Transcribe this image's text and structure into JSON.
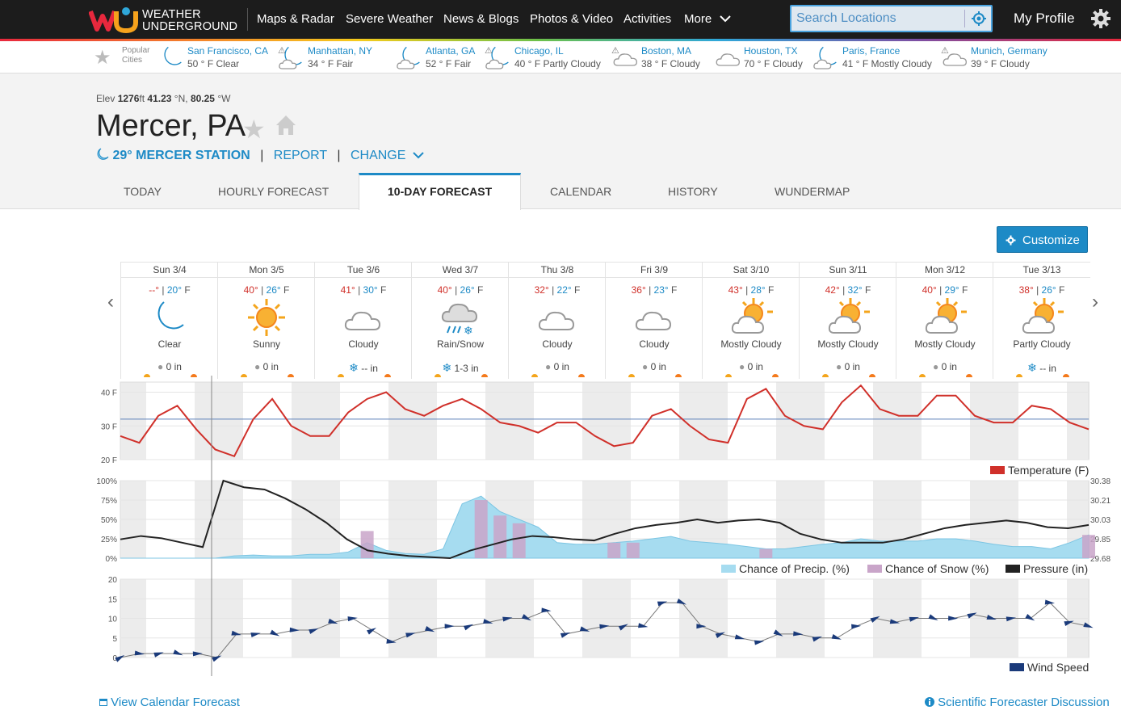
{
  "brand": {
    "line1": "WEATHER",
    "line2": "UNDERGROUND"
  },
  "nav": [
    "Maps & Radar",
    "Severe Weather",
    "News & Blogs",
    "Photos & Video",
    "Activities",
    "More"
  ],
  "search": {
    "placeholder": "Search Locations"
  },
  "profile": "My Profile",
  "popular": {
    "label_line1": "Popular",
    "label_line2": "Cities",
    "cities": [
      {
        "name": "San Francisco, CA",
        "cond": "50 ° F Clear",
        "icon": "moon-icon",
        "warn": false
      },
      {
        "name": "Manhattan, NY",
        "cond": "34 ° F Fair",
        "icon": "moon-cloud-icon",
        "warn": true
      },
      {
        "name": "Atlanta, GA",
        "cond": "52 ° F Fair",
        "icon": "moon-cloud-icon",
        "warn": false
      },
      {
        "name": "Chicago, IL",
        "cond": "40 ° F Partly Cloudy",
        "icon": "moon-cloud-icon",
        "warn": true
      },
      {
        "name": "Boston, MA",
        "cond": "38 ° F Cloudy",
        "icon": "cloud-icon",
        "warn": true
      },
      {
        "name": "Houston, TX",
        "cond": "70 ° F Cloudy",
        "icon": "cloud-icon",
        "warn": false
      },
      {
        "name": "Paris, France",
        "cond": "41 ° F Mostly Cloudy",
        "icon": "moon-cloud-icon",
        "warn": false
      },
      {
        "name": "Munich, Germany",
        "cond": "39 ° F Cloudy",
        "icon": "cloud-icon",
        "warn": true
      }
    ]
  },
  "location": {
    "elev_label": "Elev",
    "elev_value": "1276",
    "elev_unit": "ft",
    "lat": "41.23",
    "lat_unit": "°N,",
    "lon": "80.25",
    "lon_unit": "°W",
    "title": "Mercer, PA",
    "station_temp": "29°",
    "station_name": "MERCER STATION",
    "report": "REPORT",
    "change": "CHANGE"
  },
  "tabs": [
    "TODAY",
    "HOURLY FORECAST",
    "10-DAY FORECAST",
    "CALENDAR",
    "HISTORY",
    "WUNDERMAP"
  ],
  "active_tab": "10-DAY FORECAST",
  "customize": "Customize",
  "days": [
    {
      "label": "Sun 3/4",
      "hi": "--°",
      "lo": "20°",
      "unit": "F",
      "cond": "Clear",
      "icon": "moon-icon",
      "precip": "0 in",
      "precip_icon": "drop-icon"
    },
    {
      "label": "Mon 3/5",
      "hi": "40°",
      "lo": "26°",
      "unit": "F",
      "cond": "Sunny",
      "icon": "sun-icon",
      "precip": "0 in",
      "precip_icon": "drop-icon"
    },
    {
      "label": "Tue 3/6",
      "hi": "41°",
      "lo": "30°",
      "unit": "F",
      "cond": "Cloudy",
      "icon": "cloud-icon",
      "precip": "-- in",
      "precip_icon": "snowflake-icon"
    },
    {
      "label": "Wed 3/7",
      "hi": "40°",
      "lo": "26°",
      "unit": "F",
      "cond": "Rain/Snow",
      "icon": "rain-snow-icon",
      "precip": "1-3 in",
      "precip_icon": "snowflake-icon"
    },
    {
      "label": "Thu 3/8",
      "hi": "32°",
      "lo": "22°",
      "unit": "F",
      "cond": "Cloudy",
      "icon": "cloud-icon",
      "precip": "0 in",
      "precip_icon": "drop-icon"
    },
    {
      "label": "Fri 3/9",
      "hi": "36°",
      "lo": "23°",
      "unit": "F",
      "cond": "Cloudy",
      "icon": "cloud-icon",
      "precip": "0 in",
      "precip_icon": "drop-icon"
    },
    {
      "label": "Sat 3/10",
      "hi": "43°",
      "lo": "28°",
      "unit": "F",
      "cond": "Mostly Cloudy",
      "icon": "sun-cloud-icon",
      "precip": "0 in",
      "precip_icon": "drop-icon"
    },
    {
      "label": "Sun 3/11",
      "hi": "42°",
      "lo": "32°",
      "unit": "F",
      "cond": "Mostly Cloudy",
      "icon": "sun-cloud-icon",
      "precip": "0 in",
      "precip_icon": "drop-icon"
    },
    {
      "label": "Mon 3/12",
      "hi": "40°",
      "lo": "29°",
      "unit": "F",
      "cond": "Mostly Cloudy",
      "icon": "sun-cloud-icon",
      "precip": "0 in",
      "precip_icon": "drop-icon"
    },
    {
      "label": "Tue 3/13",
      "hi": "38°",
      "lo": "26°",
      "unit": "F",
      "cond": "Partly Cloudy",
      "icon": "sun-cloud-icon",
      "precip": "-- in",
      "precip_icon": "snowflake-icon"
    }
  ],
  "colors": {
    "temperature": "#d0302a",
    "precip": "#a6dcf0",
    "snow": "#c9a5c9",
    "pressure": "#222222",
    "wind": "#1a3a7a",
    "accent": "#1d8ac6"
  },
  "chart_data": [
    {
      "type": "line",
      "x_axis": "hours from Sun 3/4, 6-hour steps over 10 days",
      "ylim": [
        20,
        43
      ],
      "yticks": [
        "40 F",
        "30 F",
        "20 F"
      ],
      "series": [
        {
          "name": "Temperature (F)",
          "values": [
            27,
            25,
            33,
            36,
            29,
            23,
            21,
            32,
            38,
            30,
            27,
            27,
            34,
            38,
            40,
            35,
            33,
            36,
            38,
            35,
            31,
            30,
            28,
            31,
            31,
            27,
            24,
            25,
            33,
            35,
            30,
            26,
            25,
            38,
            41,
            33,
            30,
            29,
            37,
            42,
            35,
            33,
            33,
            39,
            39,
            33,
            31,
            31,
            36,
            35,
            31,
            29
          ]
        }
      ]
    },
    {
      "type": "area",
      "ylim": [
        0,
        100
      ],
      "yticks": [
        "100%",
        "75%",
        "50%",
        "25%",
        "0%"
      ],
      "y2ticks": [
        "30.38",
        "30.21",
        "30.03",
        "29.85",
        "29.68"
      ],
      "series": [
        {
          "name": "Chance of Precip. (%)",
          "values": [
            0,
            0,
            0,
            0,
            0,
            0,
            3,
            4,
            3,
            3,
            5,
            5,
            8,
            20,
            10,
            6,
            5,
            12,
            70,
            80,
            60,
            50,
            40,
            20,
            18,
            18,
            20,
            22,
            25,
            28,
            22,
            20,
            18,
            15,
            12,
            12,
            15,
            18,
            20,
            25,
            22,
            22,
            22,
            25,
            25,
            22,
            18,
            15,
            15,
            12,
            20,
            30
          ]
        },
        {
          "name": "Chance of Snow (%)",
          "values": [
            0,
            0,
            0,
            0,
            0,
            0,
            0,
            0,
            0,
            0,
            0,
            0,
            0,
            35,
            0,
            0,
            0,
            0,
            0,
            75,
            55,
            45,
            0,
            0,
            0,
            0,
            20,
            20,
            0,
            0,
            0,
            0,
            0,
            0,
            12,
            0,
            0,
            0,
            0,
            0,
            0,
            0,
            0,
            0,
            0,
            0,
            0,
            0,
            0,
            0,
            0,
            30
          ]
        },
        {
          "name": "Pressure (in)",
          "values": [
            29.85,
            29.88,
            29.86,
            29.82,
            29.78,
            30.38,
            30.32,
            30.3,
            30.22,
            30.12,
            30.0,
            29.85,
            29.75,
            29.72,
            29.7,
            29.69,
            29.68,
            29.75,
            29.8,
            29.85,
            29.88,
            29.87,
            29.85,
            29.84,
            29.9,
            29.95,
            29.98,
            30.0,
            30.03,
            30.0,
            30.02,
            30.03,
            30.0,
            29.9,
            29.85,
            29.82,
            29.82,
            29.82,
            29.85,
            29.9,
            29.95,
            29.98,
            30.0,
            30.02,
            30.0,
            29.96,
            29.95,
            29.98
          ]
        }
      ]
    },
    {
      "type": "line",
      "ylim": [
        0,
        20
      ],
      "yticks": [
        "20",
        "15",
        "10",
        "5",
        "0"
      ],
      "series": [
        {
          "name": "Wind Speed",
          "values": [
            0,
            1,
            1,
            1,
            1,
            0,
            6,
            6,
            6,
            7,
            7,
            9,
            10,
            7,
            4,
            6,
            7,
            8,
            8,
            9,
            10,
            10,
            12,
            6,
            7,
            8,
            8,
            8,
            14,
            14,
            8,
            6,
            5,
            4,
            6,
            6,
            5,
            5,
            8,
            10,
            9,
            10,
            10,
            10,
            11,
            10,
            10,
            10,
            14,
            9,
            8
          ]
        }
      ]
    }
  ],
  "links": {
    "calendar": "View Calendar Forecast",
    "discussion": "Scientific Forecaster Discussion"
  }
}
